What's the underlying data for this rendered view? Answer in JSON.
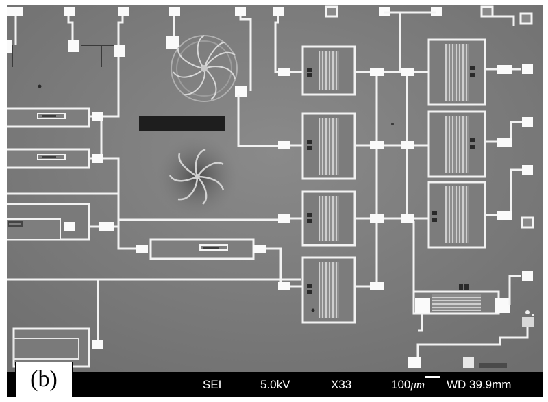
{
  "figure": {
    "panel_label": "(b)"
  },
  "sem_info": {
    "detector": "SEI",
    "voltage": "5.0kV",
    "magnification": "X33",
    "scale": "100",
    "scale_unit": "μm",
    "working_distance": "WD 39.9mm"
  },
  "colors": {
    "substrate": "#7a7a7a",
    "trace": "#f4f4f4",
    "pad": "#fafafa",
    "shadow": "#5c5c5c",
    "bar": "#000000"
  }
}
